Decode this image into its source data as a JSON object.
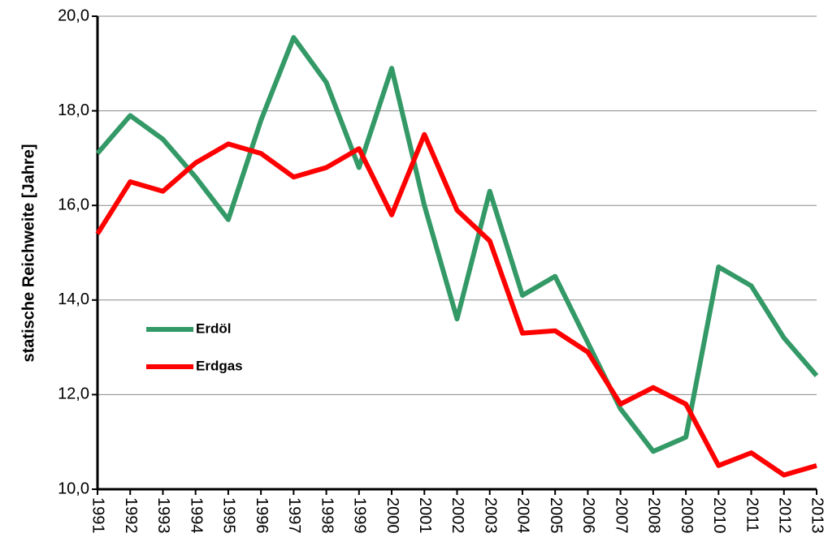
{
  "chart_data": {
    "type": "line",
    "y_label": "statische Reichweite [Jahre]",
    "categories": [
      "1991",
      "1992",
      "1993",
      "1994",
      "1995",
      "1996",
      "1997",
      "1998",
      "1999",
      "2000",
      "2001",
      "2002",
      "2003",
      "2004",
      "2005",
      "2006",
      "2007",
      "2008",
      "2009",
      "2010",
      "2011",
      "2012",
      "2013"
    ],
    "series": [
      {
        "name": "Erdöl",
        "color": "#339966",
        "values": [
          17.1,
          17.9,
          17.4,
          16.6,
          15.7,
          17.8,
          19.55,
          18.6,
          16.8,
          18.9,
          16.0,
          13.6,
          16.3,
          14.1,
          14.5,
          13.1,
          11.7,
          10.8,
          11.1,
          14.7,
          14.3,
          13.2,
          12.4
        ]
      },
      {
        "name": "Erdgas",
        "color": "#ff0000",
        "values": [
          15.4,
          16.5,
          16.3,
          16.9,
          17.3,
          17.1,
          16.6,
          16.8,
          17.2,
          15.8,
          17.5,
          15.9,
          15.25,
          13.3,
          13.35,
          12.9,
          11.8,
          12.15,
          11.8,
          10.5,
          10.77,
          10.3,
          10.5
        ]
      }
    ],
    "ylim": [
      10,
      20
    ],
    "yticks": [
      {
        "value": 10,
        "label": "10,0"
      },
      {
        "value": 12,
        "label": "12,0"
      },
      {
        "value": 14,
        "label": "14,0"
      },
      {
        "value": 16,
        "label": "16,0"
      },
      {
        "value": 18,
        "label": "18,0"
      },
      {
        "value": 20,
        "label": "20,0"
      }
    ],
    "grid": true
  }
}
